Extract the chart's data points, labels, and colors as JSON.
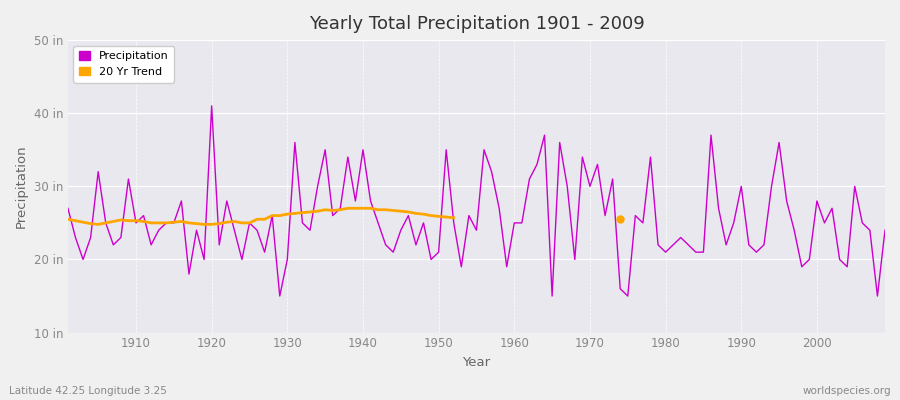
{
  "title": "Yearly Total Precipitation 1901 - 2009",
  "xlabel": "Year",
  "ylabel": "Precipitation",
  "bottom_left_label": "Latitude 42.25 Longitude 3.25",
  "bottom_right_label": "worldspecies.org",
  "line_color": "#CC00CC",
  "trend_color": "#FFA500",
  "bg_color": "#E8E8EE",
  "fig_bg_color": "#F0F0F0",
  "ylim": [
    10,
    50
  ],
  "yticks": [
    10,
    20,
    30,
    40,
    50
  ],
  "ytick_labels": [
    "10 in",
    "20 in",
    "30 in",
    "40 in",
    "50 in"
  ],
  "xlim": [
    1901,
    2009
  ],
  "xticks": [
    1910,
    1920,
    1930,
    1940,
    1950,
    1960,
    1970,
    1980,
    1990,
    2000
  ],
  "years": [
    1901,
    1902,
    1903,
    1904,
    1905,
    1906,
    1907,
    1908,
    1909,
    1910,
    1911,
    1912,
    1913,
    1914,
    1915,
    1916,
    1917,
    1918,
    1919,
    1920,
    1921,
    1922,
    1923,
    1924,
    1925,
    1926,
    1927,
    1928,
    1929,
    1930,
    1931,
    1932,
    1933,
    1934,
    1935,
    1936,
    1937,
    1938,
    1939,
    1940,
    1941,
    1942,
    1943,
    1944,
    1945,
    1946,
    1947,
    1948,
    1949,
    1950,
    1951,
    1952,
    1953,
    1954,
    1955,
    1956,
    1957,
    1958,
    1959,
    1960,
    1961,
    1962,
    1963,
    1964,
    1965,
    1966,
    1967,
    1968,
    1969,
    1970,
    1971,
    1972,
    1973,
    1974,
    1975,
    1976,
    1977,
    1978,
    1979,
    1980,
    1981,
    1982,
    1983,
    1984,
    1985,
    1986,
    1987,
    1988,
    1989,
    1990,
    1991,
    1992,
    1993,
    1994,
    1995,
    1996,
    1997,
    1998,
    1999,
    2000,
    2001,
    2002,
    2003,
    2004,
    2005,
    2006,
    2007,
    2008,
    2009
  ],
  "precip": [
    27,
    23,
    20,
    23,
    32,
    25,
    22,
    23,
    31,
    25,
    26,
    22,
    24,
    25,
    25,
    28,
    18,
    24,
    20,
    41,
    22,
    28,
    24,
    20,
    25,
    24,
    21,
    26,
    15,
    20,
    36,
    25,
    24,
    30,
    35,
    26,
    27,
    34,
    28,
    35,
    28,
    25,
    22,
    21,
    24,
    26,
    22,
    25,
    20,
    21,
    35,
    25,
    19,
    26,
    24,
    35,
    32,
    27,
    19,
    25,
    25,
    31,
    33,
    37,
    15,
    36,
    30,
    20,
    34,
    30,
    33,
    26,
    31,
    16,
    15,
    26,
    25,
    34,
    22,
    21,
    22,
    23,
    22,
    21,
    21,
    37,
    27,
    22,
    25,
    30,
    22,
    21,
    22,
    30,
    36,
    28,
    24,
    19,
    20,
    28,
    25,
    27,
    20,
    19,
    30,
    25,
    24,
    15,
    24
  ],
  "trend_line_years": [
    1901,
    1902,
    1903,
    1904,
    1905,
    1906,
    1907,
    1908,
    1909,
    1910,
    1911,
    1912,
    1913,
    1914,
    1915,
    1916,
    1917,
    1918,
    1919,
    1920,
    1921,
    1922,
    1923,
    1924,
    1925,
    1926,
    1927,
    1928,
    1929,
    1930,
    1931,
    1932,
    1933,
    1934,
    1935,
    1936,
    1937,
    1938,
    1939,
    1940,
    1941,
    1942,
    1943,
    1944,
    1945,
    1946,
    1947,
    1948,
    1949,
    1950,
    1951,
    1952
  ],
  "trend_line_vals": [
    25.5,
    25.3,
    25.1,
    24.9,
    24.8,
    25.0,
    25.2,
    25.4,
    25.3,
    25.3,
    25.2,
    25.0,
    25.0,
    25.0,
    25.1,
    25.2,
    25.0,
    24.9,
    24.8,
    24.8,
    24.9,
    25.1,
    25.2,
    25.0,
    25.0,
    25.5,
    25.5,
    26.0,
    26.0,
    26.2,
    26.3,
    26.4,
    26.5,
    26.6,
    26.8,
    26.7,
    26.8,
    27.0,
    27.0,
    27.0,
    27.0,
    26.8,
    26.8,
    26.7,
    26.6,
    26.5,
    26.3,
    26.2,
    26.0,
    25.9,
    25.8,
    25.7
  ],
  "trend_dot_year": 1974,
  "trend_dot_val": 25.5
}
